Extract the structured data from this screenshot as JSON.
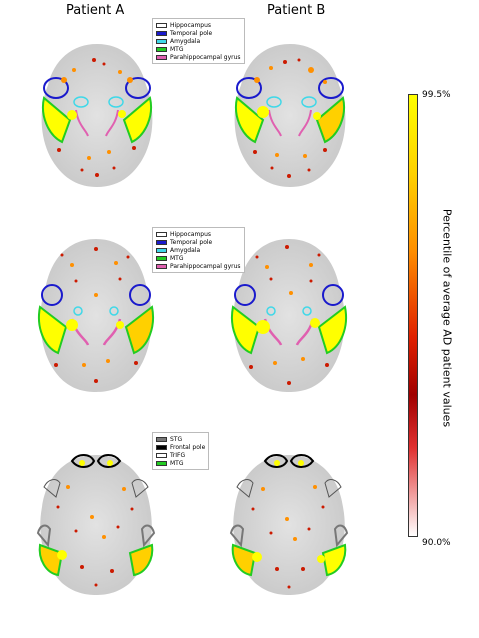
{
  "columns": {
    "a": "Patient A",
    "b": "Patient B"
  },
  "legends": {
    "row1": [
      {
        "label": "Hippocampus",
        "color": "#ffffff"
      },
      {
        "label": "Temporal pole",
        "color": "#1a1acc"
      },
      {
        "label": "Amygdala",
        "color": "#40d8e8"
      },
      {
        "label": "MTG",
        "color": "#22cc22"
      },
      {
        "label": "Parahippocampal gyrus",
        "color": "#e060b0"
      }
    ],
    "row2": [
      {
        "label": "Hippocampus",
        "color": "#ffffff"
      },
      {
        "label": "Temporal pole",
        "color": "#1a1acc"
      },
      {
        "label": "Amygdala",
        "color": "#40d8e8"
      },
      {
        "label": "MTG",
        "color": "#22cc22"
      },
      {
        "label": "Parahippocampal gyrus",
        "color": "#e060b0"
      }
    ],
    "row3": [
      {
        "label": "STG",
        "color": "#777777"
      },
      {
        "label": "Frontal pole",
        "color": "#000000"
      },
      {
        "label": "TrIFG",
        "color": "#ffffff"
      },
      {
        "label": "MTG",
        "color": "#22cc22"
      }
    ]
  },
  "colorbar": {
    "max_label": "99.5%",
    "min_label": "90.0%",
    "axis_label": "Percentile of  average AD patient values",
    "colors": [
      "#ffff00",
      "#ff9000",
      "#e02000",
      "#a00000",
      "#ffffff"
    ]
  }
}
